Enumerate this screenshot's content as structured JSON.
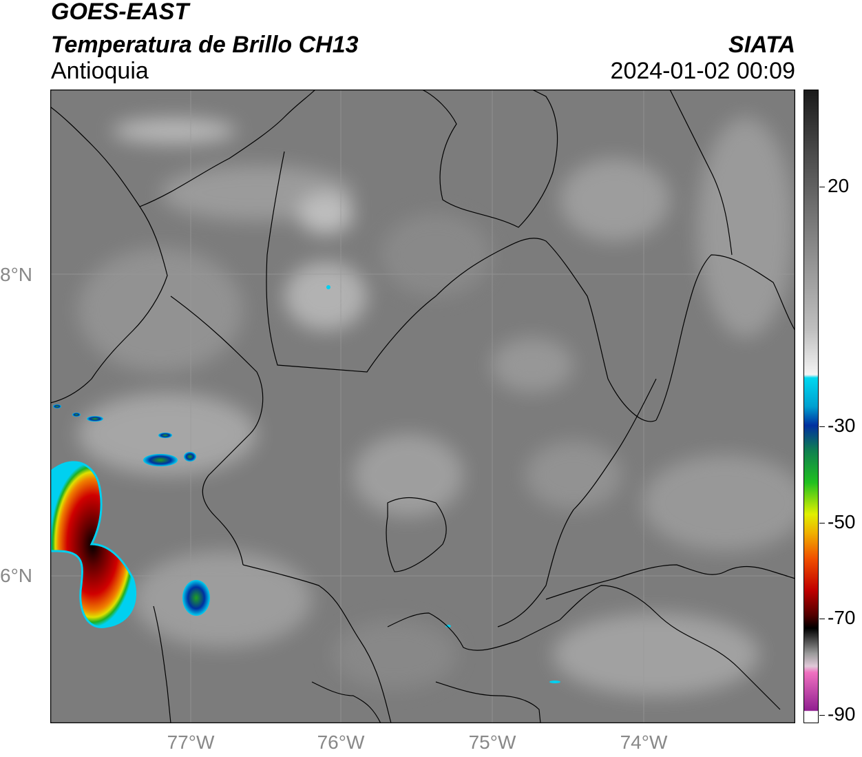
{
  "header": {
    "satellite": "GOES-EAST",
    "product": "Temperatura de Brillo CH13",
    "region": "Antioquia",
    "brand": "SIATA",
    "timestamp": "2024-01-02 00:09"
  },
  "axes": {
    "lat_labels": [
      "8°N",
      "6°N"
    ],
    "lon_labels": [
      "77°W",
      "76°W",
      "75°W",
      "74°W"
    ]
  },
  "colorbar": {
    "ticks": [
      "20",
      "-30",
      "-50",
      "-70",
      "-90"
    ],
    "colors": {
      "warm_dark": "#3a3a3a",
      "mid_gray": "#8a8a8a",
      "light_gray": "#d8d8d8",
      "cyan": "#00d8f0",
      "blue": "#0030a0",
      "green": "#20b020",
      "yellow": "#f0e000",
      "orange": "#f08000",
      "red": "#d00000",
      "dark_red": "#500000",
      "black": "#000000",
      "pink": "#e070c0",
      "purple": "#902090"
    }
  }
}
